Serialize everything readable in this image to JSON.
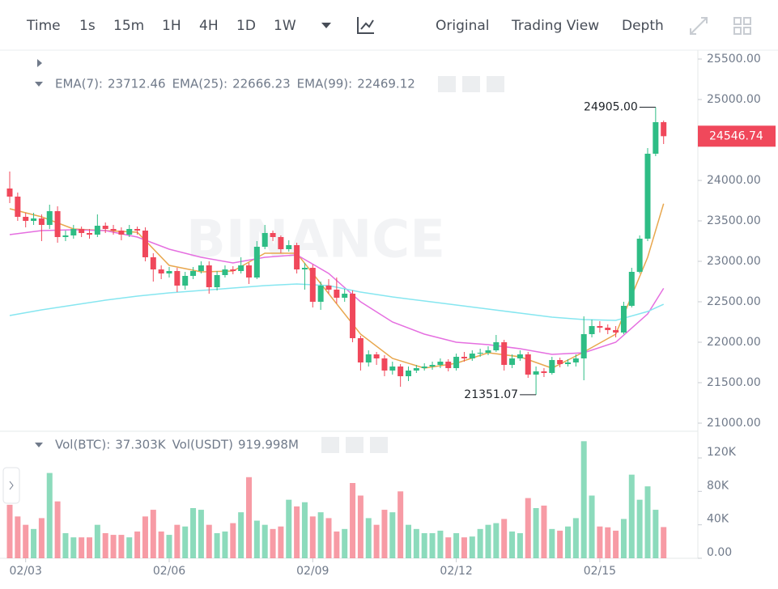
{
  "toolbar": {
    "intervals": [
      "Time",
      "1s",
      "15m",
      "1H",
      "4H",
      "1D",
      "1W"
    ],
    "active": "4H",
    "views": [
      "Original",
      "Trading View",
      "Depth"
    ],
    "active_view": "Original"
  },
  "chart_data": {
    "type": "candlestick",
    "watermark": "BINANCE",
    "up_color": "#2ebd85",
    "down_color": "#f0485b",
    "open": [
      23900,
      23800,
      23550,
      23500,
      23530,
      23450,
      23620,
      23300,
      23320,
      23400,
      23350,
      23330,
      23440,
      23400,
      23380,
      23330,
      23400,
      23380,
      23050,
      22900,
      22850,
      22880,
      22700,
      22820,
      22880,
      22950,
      22680,
      22830,
      22900,
      22880,
      22950,
      22800,
      23180,
      23350,
      23300,
      23150,
      23200,
      22900,
      22920,
      22500,
      22700,
      22650,
      22550,
      22600,
      22050,
      21750,
      21850,
      21800,
      21650,
      21700,
      21580,
      21650,
      21680,
      21700,
      21720,
      21760,
      21680,
      21820,
      21800,
      21860,
      21870,
      21900,
      22000,
      21720,
      21800,
      21850,
      21600,
      21640,
      21620,
      21780,
      21730,
      21750,
      21800,
      22100,
      22200,
      22180,
      22150,
      22120,
      22450,
      22870,
      23280,
      24330,
      24720
    ],
    "high": [
      24110,
      23850,
      23600,
      23600,
      23580,
      23700,
      23680,
      23380,
      23450,
      23430,
      23400,
      23580,
      23480,
      23450,
      23420,
      23450,
      23430,
      23420,
      23100,
      22950,
      22930,
      22920,
      22870,
      22930,
      23000,
      23000,
      22880,
      22950,
      22940,
      23050,
      22980,
      23250,
      23450,
      23380,
      23320,
      23260,
      23230,
      22980,
      22960,
      22750,
      22780,
      22800,
      22660,
      22640,
      22080,
      21900,
      21880,
      21840,
      21760,
      21730,
      21700,
      21720,
      21740,
      21760,
      21800,
      21790,
      21860,
      21880,
      21900,
      21920,
      21950,
      22090,
      22030,
      21850,
      21900,
      21880,
      21700,
      21680,
      21820,
      21810,
      21790,
      21850,
      22320,
      22280,
      22260,
      22220,
      22200,
      22500,
      22920,
      23320,
      24400,
      24905,
      24740
    ],
    "low": [
      23720,
      23500,
      23420,
      23450,
      23250,
      23400,
      23230,
      23250,
      23280,
      23300,
      23280,
      23300,
      23350,
      23330,
      23260,
      23300,
      23330,
      23000,
      22750,
      22780,
      22800,
      22620,
      22650,
      22780,
      22850,
      22600,
      22640,
      22800,
      22840,
      22850,
      22720,
      22780,
      23150,
      23250,
      23100,
      23120,
      22850,
      22650,
      22430,
      22400,
      22600,
      22480,
      22500,
      22000,
      21650,
      21700,
      21720,
      21580,
      21600,
      21450,
      21520,
      21620,
      21650,
      21660,
      21680,
      21640,
      21650,
      21760,
      21770,
      21820,
      21840,
      21880,
      21650,
      21680,
      21770,
      21560,
      21351.07,
      21570,
      21600,
      21690,
      21700,
      21700,
      21530,
      22060,
      22120,
      22100,
      22060,
      22100,
      22430,
      22850,
      23250,
      24300,
      24450
    ],
    "close": [
      23800,
      23550,
      23500,
      23530,
      23450,
      23620,
      23300,
      23320,
      23400,
      23350,
      23330,
      23440,
      23400,
      23380,
      23330,
      23400,
      23380,
      23050,
      22900,
      22850,
      22880,
      22700,
      22820,
      22880,
      22950,
      22680,
      22830,
      22900,
      22880,
      22950,
      22800,
      23180,
      23350,
      23300,
      23150,
      23200,
      22900,
      22920,
      22500,
      22700,
      22650,
      22550,
      22600,
      22050,
      21750,
      21850,
      21800,
      21650,
      21700,
      21580,
      21650,
      21680,
      21700,
      21720,
      21760,
      21680,
      21820,
      21800,
      21860,
      21870,
      21900,
      22000,
      21720,
      21800,
      21850,
      21600,
      21640,
      21620,
      21780,
      21730,
      21750,
      21800,
      22100,
      22200,
      22180,
      22150,
      22120,
      22450,
      22870,
      23280,
      24330,
      24720,
      24546.74
    ],
    "ylim": [
      20910,
      25610
    ],
    "yticks": [
      {
        "value": 21000,
        "label": "21000.00"
      },
      {
        "value": 21500,
        "label": "21500.00"
      },
      {
        "value": 22000,
        "label": "22000.00"
      },
      {
        "value": 22500,
        "label": "22500.00"
      },
      {
        "value": 23000,
        "label": "23000.00"
      },
      {
        "value": 23500,
        "label": "23500.00"
      },
      {
        "value": 24000,
        "label": "24000.00"
      },
      {
        "value": 24500,
        "label": "24500.00"
      },
      {
        "value": 25000,
        "label": "25000.00"
      },
      {
        "value": 25500,
        "label": "25500.00"
      }
    ],
    "xticks": [
      {
        "value": 2,
        "label": "02/03"
      },
      {
        "value": 20,
        "label": "02/06"
      },
      {
        "value": 38,
        "label": "02/09"
      },
      {
        "value": 56,
        "label": "02/12"
      },
      {
        "value": 74,
        "label": "02/15"
      }
    ],
    "annotations": [
      {
        "x": 81,
        "value": 24905,
        "label": "24905.00"
      },
      {
        "x": 66,
        "value": 21351.07,
        "label": "21351.07"
      }
    ],
    "ema": [
      {
        "name": "EMA(7):",
        "color": "#e8a74e",
        "x": [
          0,
          4,
          8,
          12,
          16,
          20,
          24,
          28,
          32,
          36,
          40,
          44,
          48,
          52,
          56,
          60,
          64,
          68,
          72,
          76,
          80,
          82
        ],
        "values": [
          23650,
          23550,
          23400,
          23380,
          23360,
          22950,
          22870,
          22880,
          23100,
          23100,
          22600,
          22100,
          21800,
          21680,
          21740,
          21870,
          21820,
          21680,
          21880,
          22100,
          23050,
          23712.46
        ]
      },
      {
        "name": "EMA(25):",
        "color": "#e56fe0",
        "x": [
          0,
          4,
          8,
          12,
          16,
          20,
          24,
          28,
          32,
          36,
          40,
          44,
          48,
          52,
          56,
          60,
          64,
          68,
          72,
          76,
          80,
          82
        ],
        "values": [
          23330,
          23380,
          23390,
          23380,
          23300,
          23150,
          23050,
          22980,
          23050,
          23080,
          22850,
          22500,
          22250,
          22100,
          22000,
          21970,
          21920,
          21850,
          21870,
          22000,
          22350,
          22666.23
        ]
      },
      {
        "name": "EMA(99):",
        "color": "#86e6f0",
        "x": [
          0,
          4,
          8,
          12,
          16,
          20,
          24,
          28,
          32,
          36,
          40,
          44,
          48,
          52,
          56,
          60,
          64,
          68,
          72,
          76,
          80,
          82
        ],
        "values": [
          22330,
          22400,
          22460,
          22520,
          22570,
          22610,
          22640,
          22670,
          22700,
          22720,
          22700,
          22620,
          22560,
          22510,
          22460,
          22410,
          22360,
          22310,
          22280,
          22270,
          22380,
          22469.12
        ]
      }
    ],
    "volume": {
      "values": [
        64000,
        50000,
        40000,
        35000,
        48000,
        102000,
        68000,
        30000,
        25000,
        25000,
        25000,
        40000,
        30000,
        28000,
        28000,
        25000,
        32000,
        50000,
        58000,
        32000,
        28000,
        40000,
        38000,
        60000,
        58000,
        40000,
        30000,
        32000,
        42000,
        55000,
        97000,
        45000,
        40000,
        35000,
        38000,
        70000,
        62000,
        67000,
        50000,
        55000,
        48000,
        32000,
        35000,
        90000,
        75000,
        48000,
        40000,
        58000,
        55000,
        80000,
        40000,
        35000,
        30000,
        30000,
        33000,
        25000,
        30000,
        25000,
        26000,
        35000,
        40000,
        42000,
        47000,
        32000,
        30000,
        72000,
        60000,
        63000,
        35000,
        33000,
        38000,
        48000,
        140000,
        75000,
        38000,
        37000,
        33000,
        47000,
        100000,
        70000,
        86000,
        58000,
        37303
      ],
      "value_labels": {
        "82": "37.303K"
      },
      "name": "Vol(BTC):",
      "quote_name": "Vol(USDT)",
      "quote_value": "919.998M",
      "ylim": [
        0,
        150000
      ],
      "yticks": [
        {
          "value": 0,
          "label": "0.00"
        },
        {
          "value": 40000,
          "label": "40K"
        },
        {
          "value": 80000,
          "label": "80K"
        },
        {
          "value": 120000,
          "label": "120K"
        }
      ]
    }
  }
}
